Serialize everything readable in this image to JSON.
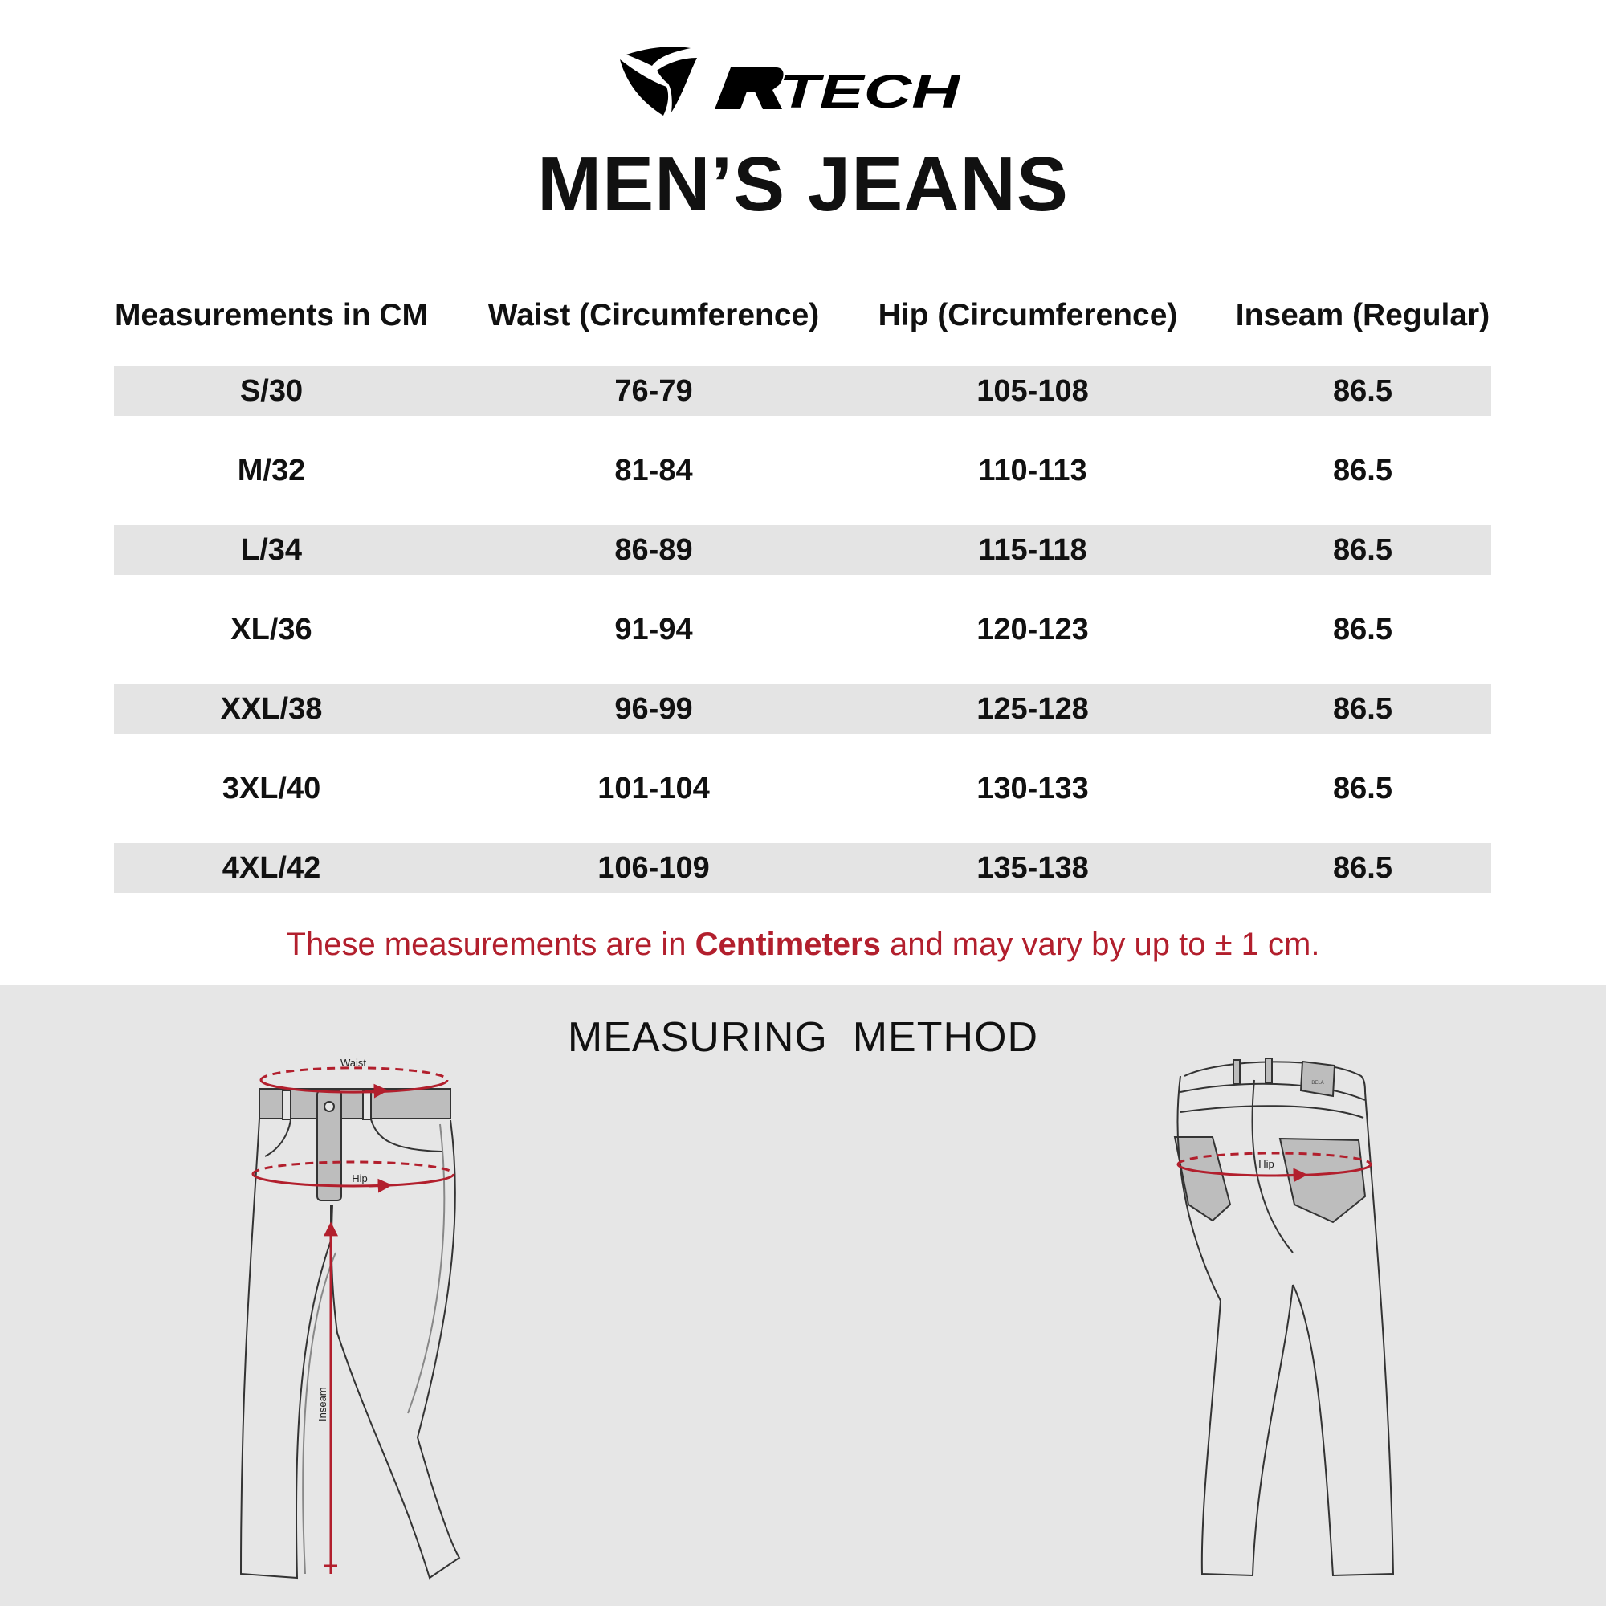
{
  "brand": {
    "logo_text": "RTECH",
    "accent": "#b21f2d"
  },
  "title": "MEN’S JEANS",
  "table": {
    "headers": [
      "Measurements in CM",
      "Waist (Circumference)",
      "Hip (Circumference)",
      "Inseam (Regular)"
    ],
    "rows": [
      [
        "S/30",
        "76-79",
        "105-108",
        "86.5"
      ],
      [
        "M/32",
        "81-84",
        "110-113",
        "86.5"
      ],
      [
        "L/34",
        "86-89",
        "115-118",
        "86.5"
      ],
      [
        "XL/36",
        "91-94",
        "120-123",
        "86.5"
      ],
      [
        "XXL/38",
        "96-99",
        "125-128",
        "86.5"
      ],
      [
        "3XL/40",
        "101-104",
        "130-133",
        "86.5"
      ],
      [
        "4XL/42",
        "106-109",
        "135-138",
        "86.5"
      ]
    ]
  },
  "note": {
    "before": "These measurements are in ",
    "bold": "Centimeters",
    "after": " and may vary by up to ± 1 cm."
  },
  "method": {
    "title": "MEASURING  METHOD",
    "labels": {
      "waist": "Waist",
      "hip": "Hip",
      "inseam": "Inseam",
      "back_hip": "Hip"
    },
    "tag_text": "BELA"
  }
}
